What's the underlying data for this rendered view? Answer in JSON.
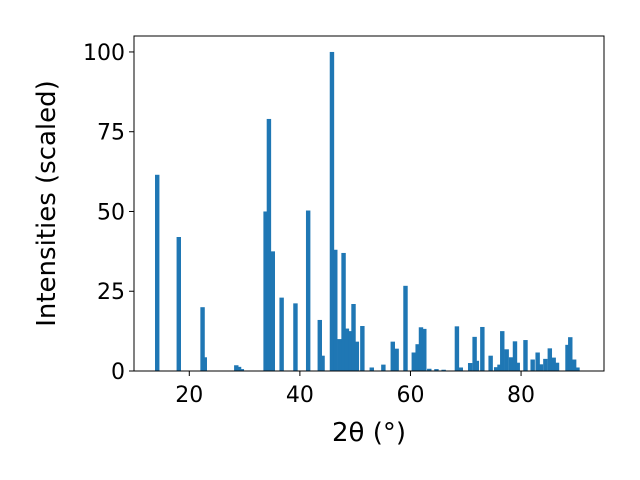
{
  "chart_data": {
    "type": "bar",
    "title": "",
    "xlabel": "2θ (°)",
    "ylabel": "Intensities (scaled)",
    "xlim": [
      10,
      95
    ],
    "ylim": [
      0,
      105
    ],
    "x_ticks": [
      20,
      40,
      60,
      80
    ],
    "y_ticks": [
      0,
      25,
      50,
      75,
      100
    ],
    "grid": false,
    "bar_color": "#1f77b4",
    "bar_width": 0.8,
    "x": [
      14.2,
      18.1,
      22.4,
      22.8,
      28.5,
      29.0,
      29.5,
      33.8,
      34.4,
      35.1,
      36.7,
      39.2,
      41.5,
      43.6,
      44.1,
      45.8,
      46.4,
      47.2,
      47.9,
      48.5,
      49.2,
      49.7,
      50.3,
      51.3,
      53.0,
      55.1,
      56.8,
      57.5,
      59.1,
      60.6,
      61.3,
      61.9,
      62.5,
      63.4,
      64.7,
      66.0,
      68.4,
      69.1,
      70.8,
      71.6,
      72.0,
      73.0,
      74.5,
      75.5,
      76.1,
      76.6,
      77.4,
      78.2,
      78.9,
      79.4,
      80.8,
      82.1,
      83.0,
      83.6,
      84.4,
      85.2,
      85.9,
      86.5,
      88.4,
      88.9,
      89.6,
      90.2
    ],
    "values": [
      61.5,
      42,
      20,
      4.3,
      1.8,
      1.3,
      0.6,
      50,
      79,
      37.5,
      23,
      21.2,
      50.3,
      16,
      4.8,
      100,
      38,
      10,
      37,
      13.3,
      12.5,
      21,
      9.2,
      14.1,
      1.1,
      2,
      9.2,
      7,
      26.7,
      5.8,
      8.4,
      13.7,
      13.2,
      0.7,
      0.6,
      0.4,
      14,
      1.1,
      2.5,
      10.7,
      3.2,
      13.8,
      4.8,
      1.2,
      2,
      12.5,
      6.8,
      4.3,
      9.3,
      2.6,
      9.7,
      3.6,
      5.8,
      2.1,
      3.8,
      7.1,
      4.2,
      2.6,
      8.2,
      10.6,
      3.6,
      1.1
    ]
  }
}
